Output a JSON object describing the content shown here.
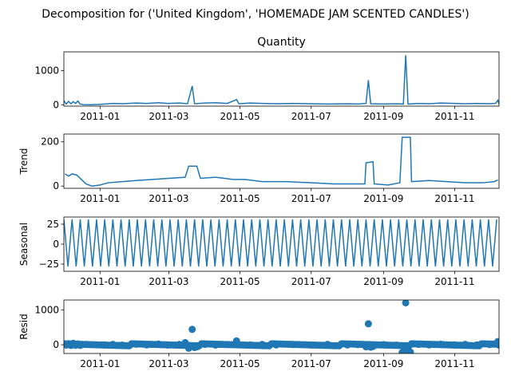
{
  "figure": {
    "suptitle": "Decomposition for ('United Kingdom', 'HOMEMADE JAM SCENTED CANDLES')",
    "line_color": "#1f77b4"
  },
  "chart_data": [
    {
      "type": "line",
      "title": "Quantity",
      "ylabel": "",
      "xlim": [
        "2010-12-01",
        "2011-12-09"
      ],
      "ylim": [
        -40,
        1550
      ],
      "yticks": [
        0,
        1000
      ],
      "xticks": [
        "2011-01",
        "2011-03",
        "2011-05",
        "2011-07",
        "2011-09",
        "2011-11"
      ],
      "points": [
        [
          "2010-12-01",
          120
        ],
        [
          "2010-12-03",
          20
        ],
        [
          "2010-12-05",
          100
        ],
        [
          "2010-12-07",
          30
        ],
        [
          "2010-12-09",
          90
        ],
        [
          "2010-12-11",
          40
        ],
        [
          "2010-12-13",
          110
        ],
        [
          "2010-12-15",
          20
        ],
        [
          "2010-12-18",
          5
        ],
        [
          "2010-12-25",
          0
        ],
        [
          "2011-01-05",
          20
        ],
        [
          "2011-01-12",
          40
        ],
        [
          "2011-01-20",
          30
        ],
        [
          "2011-02-01",
          50
        ],
        [
          "2011-02-10",
          40
        ],
        [
          "2011-02-20",
          60
        ],
        [
          "2011-02-28",
          40
        ],
        [
          "2011-03-10",
          50
        ],
        [
          "2011-03-17",
          30
        ],
        [
          "2011-03-21",
          550
        ],
        [
          "2011-03-23",
          30
        ],
        [
          "2011-04-01",
          50
        ],
        [
          "2011-04-10",
          60
        ],
        [
          "2011-04-20",
          40
        ],
        [
          "2011-04-28",
          150
        ],
        [
          "2011-04-30",
          30
        ],
        [
          "2011-05-10",
          50
        ],
        [
          "2011-05-20",
          40
        ],
        [
          "2011-06-01",
          30
        ],
        [
          "2011-06-15",
          40
        ],
        [
          "2011-07-01",
          30
        ],
        [
          "2011-07-15",
          20
        ],
        [
          "2011-08-01",
          30
        ],
        [
          "2011-08-10",
          20
        ],
        [
          "2011-08-17",
          40
        ],
        [
          "2011-08-19",
          720
        ],
        [
          "2011-08-21",
          30
        ],
        [
          "2011-09-01",
          20
        ],
        [
          "2011-09-12",
          30
        ],
        [
          "2011-09-18",
          20
        ],
        [
          "2011-09-20",
          1450
        ],
        [
          "2011-09-22",
          20
        ],
        [
          "2011-10-01",
          40
        ],
        [
          "2011-10-10",
          30
        ],
        [
          "2011-10-20",
          50
        ],
        [
          "2011-11-01",
          40
        ],
        [
          "2011-11-10",
          30
        ],
        [
          "2011-11-20",
          40
        ],
        [
          "2011-12-01",
          30
        ],
        [
          "2011-12-06",
          40
        ],
        [
          "2011-12-08",
          130
        ],
        [
          "2011-12-09",
          20
        ]
      ]
    },
    {
      "type": "line",
      "title": "",
      "ylabel": "Trend",
      "xlim": [
        "2010-12-01",
        "2011-12-09"
      ],
      "ylim": [
        -10,
        235
      ],
      "yticks": [
        0,
        200
      ],
      "xticks": [
        "2011-01",
        "2011-03",
        "2011-05",
        "2011-07",
        "2011-09",
        "2011-11"
      ],
      "points": [
        [
          "2010-12-02",
          55
        ],
        [
          "2010-12-05",
          45
        ],
        [
          "2010-12-08",
          55
        ],
        [
          "2010-12-12",
          50
        ],
        [
          "2010-12-16",
          30
        ],
        [
          "2010-12-20",
          10
        ],
        [
          "2010-12-25",
          0
        ],
        [
          "2011-01-01",
          5
        ],
        [
          "2011-01-08",
          15
        ],
        [
          "2011-01-20",
          20
        ],
        [
          "2011-02-01",
          25
        ],
        [
          "2011-02-15",
          30
        ],
        [
          "2011-03-01",
          35
        ],
        [
          "2011-03-15",
          40
        ],
        [
          "2011-03-18",
          90
        ],
        [
          "2011-03-25",
          90
        ],
        [
          "2011-03-28",
          35
        ],
        [
          "2011-04-10",
          40
        ],
        [
          "2011-04-25",
          30
        ],
        [
          "2011-05-05",
          30
        ],
        [
          "2011-05-20",
          20
        ],
        [
          "2011-06-10",
          20
        ],
        [
          "2011-07-01",
          15
        ],
        [
          "2011-07-20",
          10
        ],
        [
          "2011-08-10",
          10
        ],
        [
          "2011-08-16",
          10
        ],
        [
          "2011-08-17",
          105
        ],
        [
          "2011-08-23",
          110
        ],
        [
          "2011-08-24",
          10
        ],
        [
          "2011-09-05",
          5
        ],
        [
          "2011-09-15",
          15
        ],
        [
          "2011-09-17",
          220
        ],
        [
          "2011-09-24",
          220
        ],
        [
          "2011-09-25",
          20
        ],
        [
          "2011-10-10",
          25
        ],
        [
          "2011-10-25",
          20
        ],
        [
          "2011-11-10",
          15
        ],
        [
          "2011-11-25",
          15
        ],
        [
          "2011-12-05",
          20
        ],
        [
          "2011-12-08",
          28
        ]
      ]
    },
    {
      "type": "line",
      "title": "",
      "ylabel": "Seasonal",
      "xlim": [
        "2010-12-01",
        "2011-12-09"
      ],
      "ylim": [
        -34,
        34
      ],
      "yticks": [
        -25,
        0,
        25
      ],
      "xticks": [
        "2011-01",
        "2011-03",
        "2011-05",
        "2011-07",
        "2011-09",
        "2011-11"
      ],
      "period_days": 7,
      "amplitude": 31,
      "start": "2010-12-01",
      "end": "2011-12-09"
    },
    {
      "type": "scatter",
      "title": "",
      "ylabel": "Resid",
      "xlim": [
        "2010-12-01",
        "2011-12-09"
      ],
      "ylim": [
        -250,
        1280
      ],
      "yticks": [
        0,
        1000
      ],
      "xticks": [
        "2011-01",
        "2011-03",
        "2011-05",
        "2011-07",
        "2011-09",
        "2011-11"
      ],
      "points": [
        [
          "2010-12-01",
          20
        ],
        [
          "2010-12-03",
          -10
        ],
        [
          "2010-12-05",
          30
        ],
        [
          "2010-12-07",
          -20
        ],
        [
          "2010-12-09",
          40
        ],
        [
          "2010-12-11",
          -15
        ],
        [
          "2010-12-13",
          25
        ],
        [
          "2010-12-15",
          -20
        ],
        [
          "2010-12-20",
          10
        ],
        [
          "2011-01-05",
          -5
        ],
        [
          "2011-01-12",
          10
        ],
        [
          "2011-01-20",
          -10
        ],
        [
          "2011-02-01",
          15
        ],
        [
          "2011-02-10",
          -5
        ],
        [
          "2011-02-20",
          20
        ],
        [
          "2011-02-28",
          -10
        ],
        [
          "2011-03-10",
          10
        ],
        [
          "2011-03-15",
          60
        ],
        [
          "2011-03-18",
          -100
        ],
        [
          "2011-03-21",
          440
        ],
        [
          "2011-03-23",
          -80
        ],
        [
          "2011-03-25",
          -60
        ],
        [
          "2011-04-01",
          10
        ],
        [
          "2011-04-10",
          -10
        ],
        [
          "2011-04-20",
          5
        ],
        [
          "2011-04-28",
          110
        ],
        [
          "2011-05-10",
          -5
        ],
        [
          "2011-05-20",
          10
        ],
        [
          "2011-06-01",
          -5
        ],
        [
          "2011-06-15",
          5
        ],
        [
          "2011-07-01",
          -10
        ],
        [
          "2011-07-15",
          10
        ],
        [
          "2011-08-01",
          -5
        ],
        [
          "2011-08-10",
          5
        ],
        [
          "2011-08-17",
          -60
        ],
        [
          "2011-08-19",
          600
        ],
        [
          "2011-08-21",
          -70
        ],
        [
          "2011-08-23",
          -50
        ],
        [
          "2011-09-01",
          5
        ],
        [
          "2011-09-12",
          -10
        ],
        [
          "2011-09-17",
          -220
        ],
        [
          "2011-09-18",
          -210
        ],
        [
          "2011-09-20",
          1200
        ],
        [
          "2011-09-22",
          -200
        ],
        [
          "2011-09-24",
          -210
        ],
        [
          "2011-10-01",
          10
        ],
        [
          "2011-10-10",
          -5
        ],
        [
          "2011-10-20",
          15
        ],
        [
          "2011-11-01",
          -5
        ],
        [
          "2011-11-10",
          10
        ],
        [
          "2011-11-20",
          -5
        ],
        [
          "2011-12-01",
          5
        ],
        [
          "2011-12-06",
          20
        ],
        [
          "2011-12-08",
          90
        ],
        [
          "2011-12-09",
          -10
        ]
      ]
    }
  ]
}
